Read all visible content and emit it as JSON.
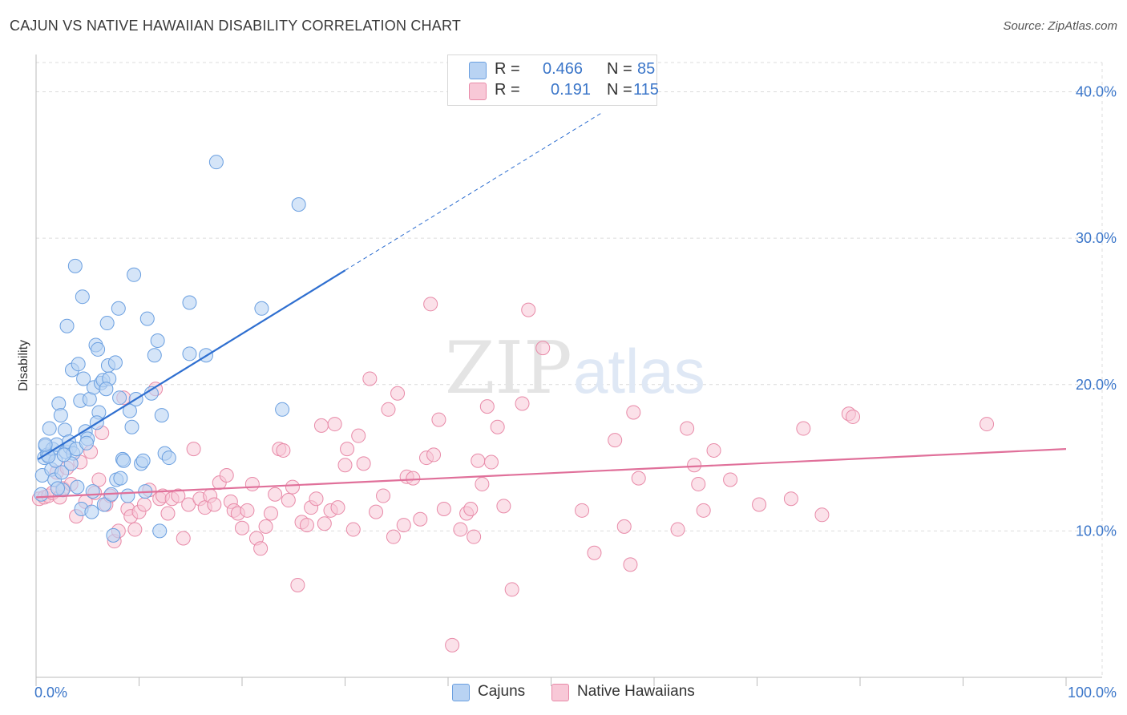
{
  "title": "CAJUN VS NATIVE HAWAIIAN DISABILITY CORRELATION CHART",
  "source": "Source: ZipAtlas.com",
  "watermark": {
    "zip": "ZIP",
    "atlas": "atlas"
  },
  "colors": {
    "blue": "#6a9fe0",
    "blue_fill": "#b9d3f3",
    "blue_line": "#2f6fd0",
    "pink": "#e88aa8",
    "pink_fill": "#f8c8d7",
    "pink_line": "#e0709a",
    "axis_label": "#3b76c9",
    "grid": "#dcdcdc"
  },
  "legend": {
    "r_label": "R =",
    "n_label": "N =",
    "series": [
      {
        "name": "Cajuns",
        "r": "0.466",
        "n": "85"
      },
      {
        "name": "Native Hawaiians",
        "r": "0.191",
        "n": "115"
      }
    ]
  },
  "chart_data": {
    "type": "scatter",
    "title": "CAJUN VS NATIVE HAWAIIAN DISABILITY CORRELATION CHART",
    "xlabel": "",
    "ylabel": "Disability",
    "xlim": [
      0,
      100
    ],
    "ylim": [
      0,
      42
    ],
    "x_tick_labels": [
      "0.0%",
      "100.0%"
    ],
    "y_ticks": [
      10,
      20,
      30,
      40
    ],
    "y_tick_labels": [
      "10.0%",
      "20.0%",
      "30.0%",
      "40.0%"
    ],
    "grid": true,
    "legend_position": "top-center",
    "series": [
      {
        "name": "Cajuns",
        "trend": {
          "x0": 0.2,
          "y0": 14.9,
          "x1": 30,
          "y1": 27.8,
          "x_dash_end": 55,
          "y_dash_end": 38.6
        },
        "points": [
          [
            0.5,
            12.5
          ],
          [
            0.6,
            13.8
          ],
          [
            0.8,
            15.0
          ],
          [
            0.9,
            15.8
          ],
          [
            1.1,
            15.2
          ],
          [
            1.3,
            17.0
          ],
          [
            1.5,
            14.2
          ],
          [
            1.6,
            15.6
          ],
          [
            1.8,
            13.5
          ],
          [
            1.9,
            14.8
          ],
          [
            2.0,
            15.9
          ],
          [
            2.2,
            18.7
          ],
          [
            2.4,
            17.9
          ],
          [
            2.5,
            14.0
          ],
          [
            2.6,
            12.8
          ],
          [
            2.8,
            16.9
          ],
          [
            2.9,
            15.4
          ],
          [
            3.0,
            24.0
          ],
          [
            3.2,
            16.1
          ],
          [
            3.3,
            15.7
          ],
          [
            3.5,
            21.0
          ],
          [
            3.6,
            15.3
          ],
          [
            3.8,
            28.1
          ],
          [
            3.9,
            15.6
          ],
          [
            4.0,
            13.0
          ],
          [
            4.1,
            21.4
          ],
          [
            4.3,
            18.9
          ],
          [
            4.4,
            11.5
          ],
          [
            4.5,
            26.0
          ],
          [
            4.6,
            20.4
          ],
          [
            4.8,
            16.8
          ],
          [
            5.0,
            16.3
          ],
          [
            5.2,
            19.0
          ],
          [
            5.4,
            11.3
          ],
          [
            5.5,
            12.7
          ],
          [
            5.6,
            19.8
          ],
          [
            5.8,
            22.7
          ],
          [
            6.0,
            22.4
          ],
          [
            6.1,
            18.1
          ],
          [
            6.3,
            20.1
          ],
          [
            6.5,
            20.3
          ],
          [
            6.6,
            11.8
          ],
          [
            6.9,
            24.2
          ],
          [
            7.0,
            21.3
          ],
          [
            7.1,
            20.4
          ],
          [
            7.3,
            12.5
          ],
          [
            7.5,
            9.7
          ],
          [
            7.7,
            21.5
          ],
          [
            7.8,
            13.5
          ],
          [
            8.0,
            25.2
          ],
          [
            8.1,
            19.1
          ],
          [
            8.2,
            13.6
          ],
          [
            8.4,
            14.9
          ],
          [
            8.5,
            14.8
          ],
          [
            8.9,
            12.4
          ],
          [
            9.1,
            18.2
          ],
          [
            9.3,
            17.1
          ],
          [
            9.5,
            27.5
          ],
          [
            9.7,
            19.0
          ],
          [
            10.2,
            14.6
          ],
          [
            10.4,
            14.8
          ],
          [
            10.6,
            12.7
          ],
          [
            10.8,
            24.5
          ],
          [
            11.2,
            19.4
          ],
          [
            11.5,
            22.0
          ],
          [
            11.8,
            23.0
          ],
          [
            12.0,
            10.0
          ],
          [
            12.2,
            17.9
          ],
          [
            12.5,
            15.3
          ],
          [
            12.9,
            15.0
          ],
          [
            14.9,
            22.1
          ],
          [
            14.9,
            25.6
          ],
          [
            16.5,
            22.0
          ],
          [
            17.5,
            35.2
          ],
          [
            21.9,
            25.2
          ],
          [
            23.9,
            18.3
          ],
          [
            25.5,
            32.3
          ],
          [
            2.1,
            12.9
          ],
          [
            3.4,
            14.6
          ],
          [
            1.2,
            15.1
          ],
          [
            0.9,
            15.9
          ],
          [
            2.7,
            15.2
          ],
          [
            6.8,
            19.7
          ],
          [
            4.9,
            16.0
          ],
          [
            5.9,
            17.4
          ]
        ]
      },
      {
        "name": "Native Hawaiians",
        "trend": {
          "x0": 0,
          "y0": 12.3,
          "x1": 100,
          "y1": 15.6
        },
        "points": [
          [
            0.3,
            12.2
          ],
          [
            0.8,
            12.3
          ],
          [
            1.2,
            12.4
          ],
          [
            1.6,
            12.6
          ],
          [
            2.0,
            14.0
          ],
          [
            2.3,
            12.3
          ],
          [
            2.6,
            12.9
          ],
          [
            3.0,
            14.3
          ],
          [
            3.4,
            13.2
          ],
          [
            3.9,
            11.0
          ],
          [
            4.3,
            14.7
          ],
          [
            4.8,
            12.0
          ],
          [
            5.3,
            15.4
          ],
          [
            5.7,
            12.6
          ],
          [
            6.1,
            13.5
          ],
          [
            6.4,
            16.7
          ],
          [
            6.8,
            11.8
          ],
          [
            7.2,
            12.4
          ],
          [
            7.6,
            9.3
          ],
          [
            8.0,
            10.0
          ],
          [
            8.5,
            19.1
          ],
          [
            8.9,
            11.5
          ],
          [
            9.2,
            11.0
          ],
          [
            9.6,
            10.1
          ],
          [
            10.0,
            11.3
          ],
          [
            10.5,
            11.8
          ],
          [
            11.0,
            12.8
          ],
          [
            11.6,
            19.7
          ],
          [
            12.0,
            12.2
          ],
          [
            12.3,
            12.4
          ],
          [
            12.8,
            11.2
          ],
          [
            13.2,
            12.2
          ],
          [
            13.8,
            12.4
          ],
          [
            14.3,
            9.5
          ],
          [
            14.8,
            11.8
          ],
          [
            15.3,
            15.6
          ],
          [
            15.9,
            12.2
          ],
          [
            16.4,
            11.6
          ],
          [
            16.9,
            12.4
          ],
          [
            17.3,
            11.8
          ],
          [
            17.8,
            13.3
          ],
          [
            18.5,
            13.8
          ],
          [
            18.9,
            12.0
          ],
          [
            19.2,
            11.4
          ],
          [
            19.6,
            11.2
          ],
          [
            20.0,
            10.2
          ],
          [
            20.5,
            11.4
          ],
          [
            21.0,
            13.2
          ],
          [
            21.4,
            9.5
          ],
          [
            21.8,
            8.8
          ],
          [
            22.3,
            10.3
          ],
          [
            22.8,
            11.2
          ],
          [
            23.2,
            12.5
          ],
          [
            23.6,
            15.6
          ],
          [
            24.0,
            15.5
          ],
          [
            24.5,
            12.1
          ],
          [
            24.9,
            13.0
          ],
          [
            25.4,
            6.3
          ],
          [
            25.8,
            10.6
          ],
          [
            26.3,
            10.4
          ],
          [
            26.7,
            11.6
          ],
          [
            27.2,
            12.2
          ],
          [
            27.7,
            17.2
          ],
          [
            28.0,
            10.5
          ],
          [
            28.6,
            11.4
          ],
          [
            29.0,
            17.3
          ],
          [
            29.3,
            11.6
          ],
          [
            30.0,
            14.5
          ],
          [
            30.2,
            15.6
          ],
          [
            30.8,
            10.1
          ],
          [
            31.3,
            16.5
          ],
          [
            31.8,
            14.6
          ],
          [
            32.4,
            20.4
          ],
          [
            33.0,
            11.3
          ],
          [
            33.7,
            12.4
          ],
          [
            34.2,
            18.3
          ],
          [
            34.7,
            9.6
          ],
          [
            35.1,
            19.4
          ],
          [
            35.7,
            10.4
          ],
          [
            36.0,
            13.7
          ],
          [
            36.6,
            13.6
          ],
          [
            37.3,
            10.8
          ],
          [
            37.9,
            15.0
          ],
          [
            38.3,
            25.5
          ],
          [
            38.6,
            15.2
          ],
          [
            39.1,
            17.6
          ],
          [
            39.6,
            11.5
          ],
          [
            40.4,
            2.2
          ],
          [
            41.2,
            10.1
          ],
          [
            41.8,
            11.2
          ],
          [
            42.2,
            11.5
          ],
          [
            42.5,
            9.6
          ],
          [
            42.9,
            14.8
          ],
          [
            43.3,
            13.2
          ],
          [
            43.8,
            18.5
          ],
          [
            44.2,
            14.7
          ],
          [
            44.8,
            17.1
          ],
          [
            45.4,
            11.7
          ],
          [
            46.2,
            6.0
          ],
          [
            47.2,
            18.7
          ],
          [
            47.8,
            25.1
          ],
          [
            49.2,
            22.5
          ],
          [
            53.0,
            11.4
          ],
          [
            54.2,
            8.5
          ],
          [
            56.2,
            16.2
          ],
          [
            57.1,
            10.3
          ],
          [
            57.7,
            7.7
          ],
          [
            58.0,
            18.1
          ],
          [
            58.5,
            13.6
          ],
          [
            62.3,
            10.1
          ],
          [
            63.2,
            17.0
          ],
          [
            63.9,
            14.5
          ],
          [
            64.3,
            13.2
          ],
          [
            64.8,
            11.4
          ],
          [
            65.8,
            15.5
          ]
        ]
      },
      {
        "name": "Native Hawaiians (right)",
        "points": [
          [
            67.4,
            13.5
          ],
          [
            70.2,
            11.8
          ],
          [
            73.3,
            12.2
          ],
          [
            74.5,
            17.0
          ],
          [
            76.3,
            11.1
          ],
          [
            78.9,
            18.0
          ],
          [
            79.3,
            17.8
          ],
          [
            92.3,
            17.3
          ]
        ]
      }
    ]
  }
}
